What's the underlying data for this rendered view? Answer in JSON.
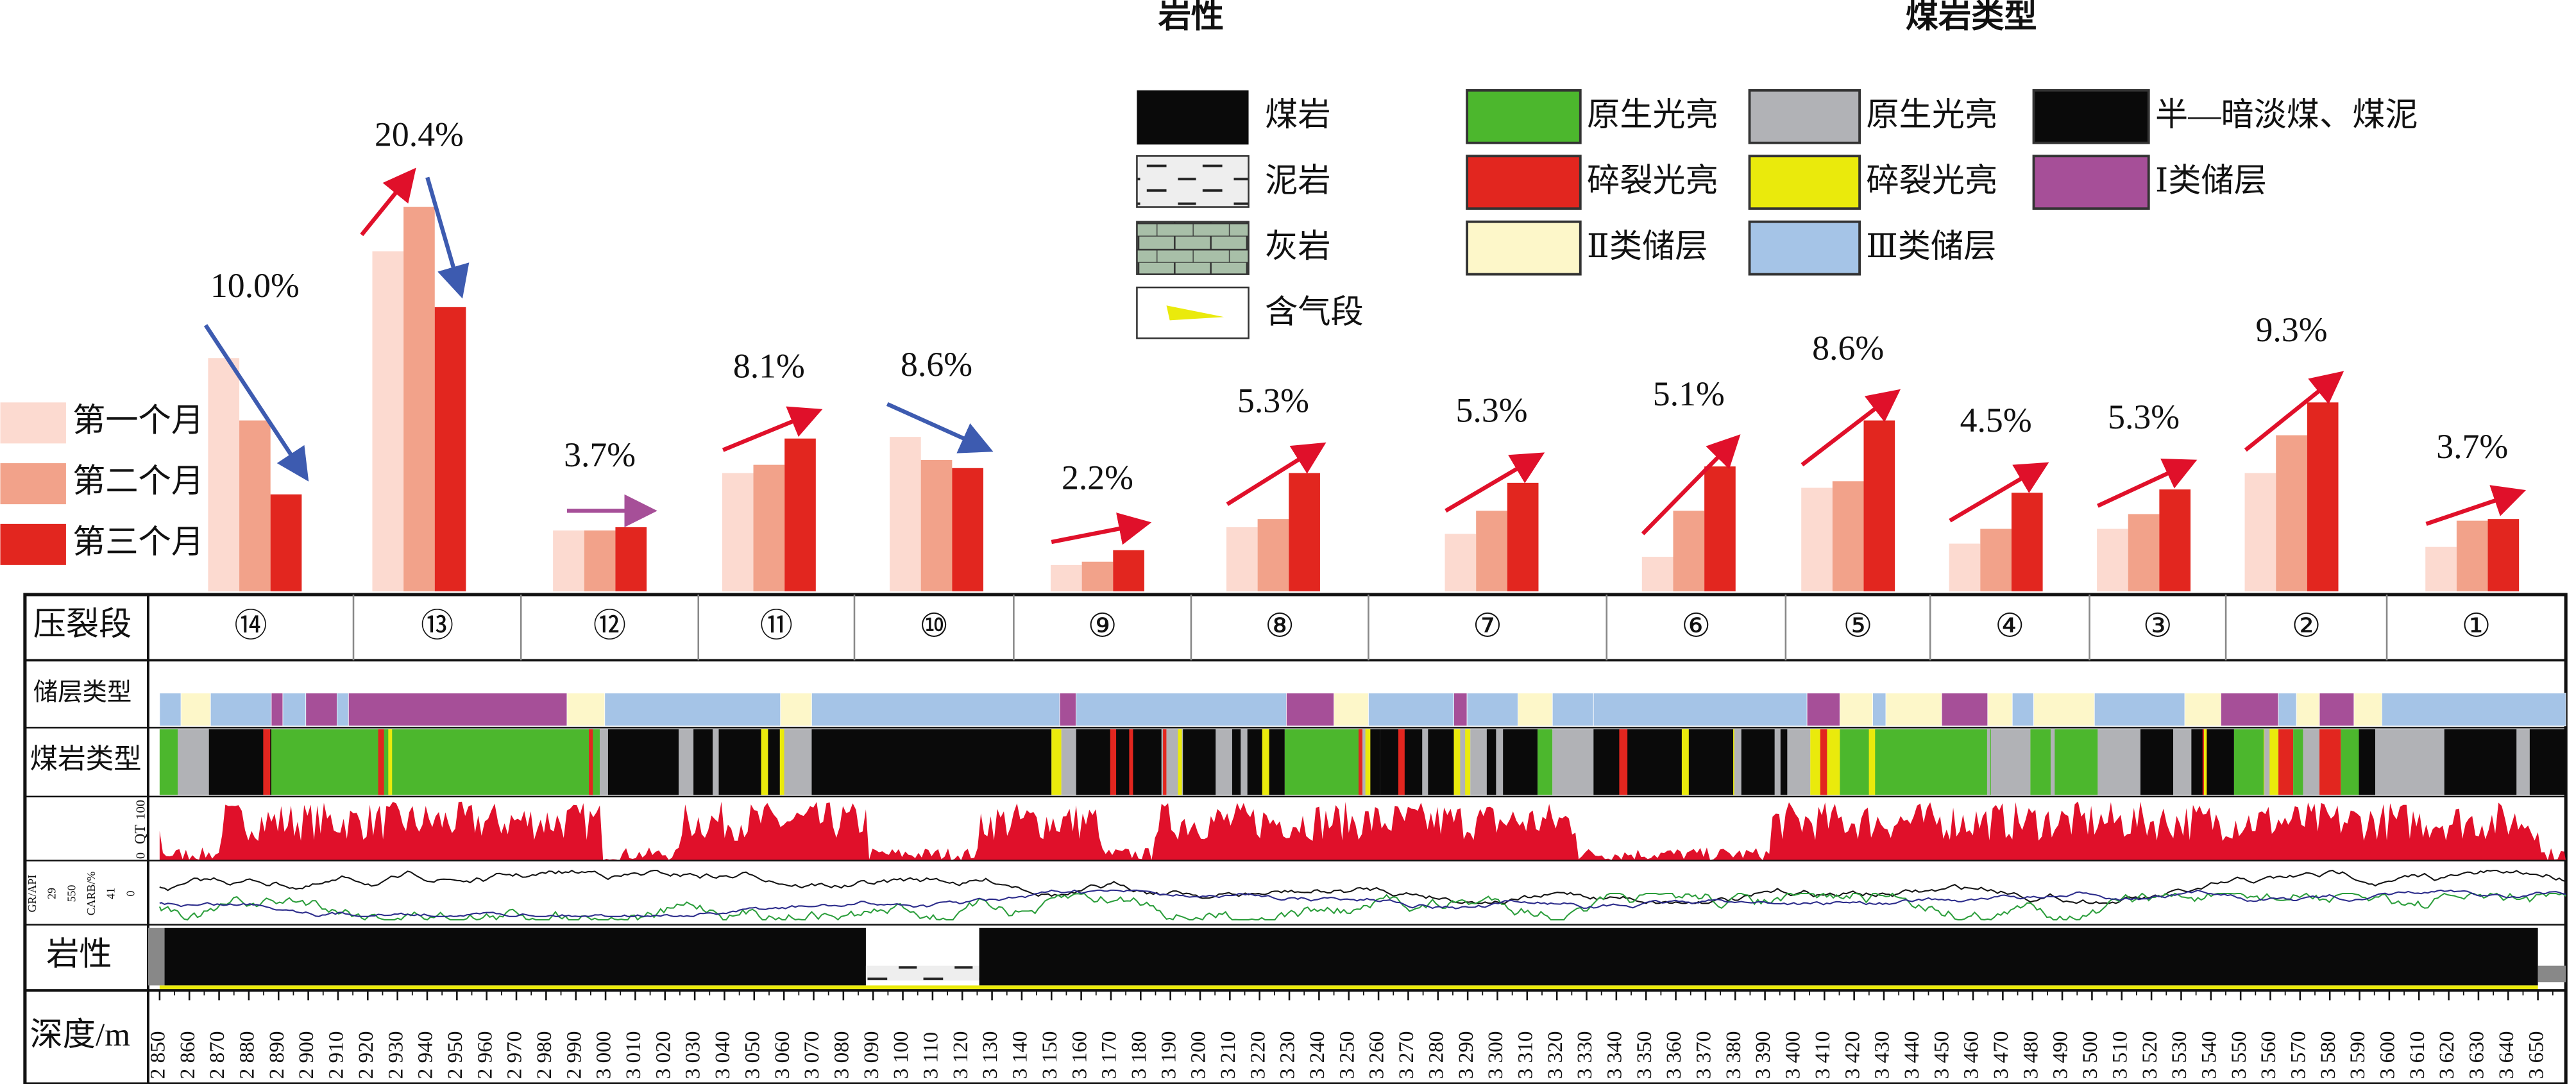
{
  "chart_data": {
    "type": "bar",
    "categories": [
      "⑭",
      "⑬",
      "⑫",
      "⑪",
      "⑩",
      "⑨",
      "⑧",
      "⑦",
      "⑥",
      "⑤",
      "④",
      "③",
      "②",
      "①"
    ],
    "series": [
      {
        "name": "第一个月",
        "color": "#fcdad0",
        "values": [
          142,
          207,
          37,
          72,
          94,
          16,
          39,
          35,
          21,
          63,
          29,
          38,
          72,
          27
        ]
      },
      {
        "name": "第二个月",
        "color": "#f2a28a",
        "values": [
          104,
          234,
          37,
          77,
          80,
          18,
          44,
          49,
          49,
          67,
          38,
          47,
          95,
          43
        ]
      },
      {
        "name": "第三个月",
        "color": "#e2261f",
        "values": [
          59,
          173,
          39,
          93,
          75,
          25,
          72,
          66,
          76,
          104,
          60,
          62,
          115,
          44
        ]
      }
    ],
    "growth": {
      "values": [
        10.0,
        20.4,
        3.7,
        8.1,
        8.6,
        2.2,
        5.3,
        5.3,
        5.1,
        8.6,
        4.5,
        5.3,
        9.3,
        3.7
      ],
      "value_labels": [
        "10.0%",
        "20.4%",
        "3.7%",
        "8.1%",
        "8.6%",
        "2.2%",
        "5.3%",
        "5.3%",
        "5.1%",
        "8.6%",
        "4.5%",
        "5.3%",
        "9.3%",
        "3.7%"
      ]
    }
  },
  "legend": {
    "lithology": {
      "title": "岩性",
      "items": [
        "煤岩",
        "泥岩",
        "灰岩",
        "含气段"
      ]
    },
    "coal": {
      "title": "煤岩类型",
      "items": [
        {
          "label": "原生光亮",
          "color": "#4cb72d"
        },
        {
          "label": "原生光亮",
          "color": "#b1b2b6"
        },
        {
          "label": "半—暗淡煤、煤泥",
          "color": "#0a0a0a"
        },
        {
          "label": "碎裂光亮",
          "color": "#e2261f"
        },
        {
          "label": "碎裂光亮",
          "color": "#eaea0c"
        },
        {
          "label": "Ⅰ类储层",
          "color": "#a64f98"
        },
        {
          "label": "Ⅱ类储层",
          "color": "#fdf7c9"
        },
        {
          "label": "Ⅲ类储层",
          "color": "#a5c4e7"
        }
      ]
    }
  },
  "track": {
    "row_labels": [
      "压裂段",
      "储层类型",
      "煤岩类型",
      "岩性",
      "深度/m"
    ],
    "qt": {
      "label": "QT",
      "low": "0",
      "high": "100"
    },
    "log_labels": [
      "GR/API",
      "29",
      "550",
      "CARB/%",
      "41",
      "0"
    ],
    "depth_ticks": [
      "2 850",
      "2 860",
      "2 870",
      "2 880",
      "2 890",
      "2 900",
      "2 910",
      "2 920",
      "2 930",
      "2 940",
      "2 950",
      "2 960",
      "2 970",
      "2 980",
      "2 990",
      "3 000",
      "3 010",
      "3 020",
      "3 030",
      "3 040",
      "3 050",
      "3 060",
      "3 070",
      "3 080",
      "3 090",
      "3 100",
      "3 110",
      "3 120",
      "3 130",
      "3 140",
      "3 150",
      "3 160",
      "3 170",
      "3 180",
      "3 190",
      "3 200",
      "3 210",
      "3 220",
      "3 230",
      "3 240",
      "3 250",
      "3 260",
      "3 270",
      "3 280",
      "3 290",
      "3 300",
      "3 310",
      "3 320",
      "3 330",
      "3 340",
      "3 350",
      "3 360",
      "3 370",
      "3 380",
      "3 390",
      "3 400",
      "3 410",
      "3 420",
      "3 430",
      "3 440",
      "3 450",
      "3 460",
      "3 470",
      "3 480",
      "3 490",
      "3 500",
      "3 510",
      "3 520",
      "3 530",
      "3 540",
      "3 550",
      "3 560",
      "3 570",
      "3 580",
      "3 590",
      "3 600",
      "3 610",
      "3 620",
      "3 630",
      "3 640",
      "3 650"
    ]
  }
}
